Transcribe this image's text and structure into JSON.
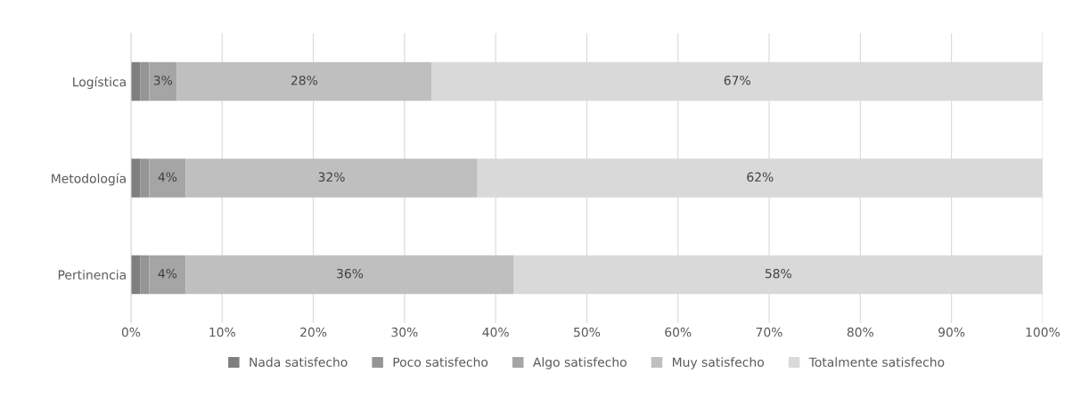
{
  "chart_data": {
    "type": "bar",
    "orientation": "horizontal",
    "stacked": true,
    "categories": [
      "Logística",
      "Metodología",
      "Pertinencia"
    ],
    "series": [
      {
        "name": "Nada satisfecho",
        "color": "#7f7f7f",
        "values": [
          1,
          1,
          1
        ]
      },
      {
        "name": "Poco satisfecho",
        "color": "#959595",
        "values": [
          1,
          1,
          1
        ]
      },
      {
        "name": "Algo satisfecho",
        "color": "#a5a5a5",
        "values": [
          3,
          4,
          4
        ],
        "value_labels": [
          "3%",
          "4%",
          "4%"
        ]
      },
      {
        "name": "Muy satisfecho",
        "color": "#bfbfbf",
        "values": [
          28,
          32,
          36
        ],
        "value_labels": [
          "28%",
          "32%",
          "36%"
        ]
      },
      {
        "name": "Totalmente satisfecho",
        "color": "#d9d9d9",
        "values": [
          67,
          62,
          58
        ],
        "value_labels": [
          "67%",
          "62%",
          "58%"
        ]
      }
    ],
    "xlim": [
      0,
      100
    ],
    "xticks": [
      {
        "value": 0,
        "label": "0%"
      },
      {
        "value": 10,
        "label": "10%"
      },
      {
        "value": 20,
        "label": "20%"
      },
      {
        "value": 30,
        "label": "30%"
      },
      {
        "value": 40,
        "label": "40%"
      },
      {
        "value": 50,
        "label": "50%"
      },
      {
        "value": 60,
        "label": "60%"
      },
      {
        "value": 70,
        "label": "70%"
      },
      {
        "value": 80,
        "label": "80%"
      },
      {
        "value": 90,
        "label": "90%"
      },
      {
        "value": 100,
        "label": "100%"
      }
    ],
    "grid": "x",
    "legend": "bottom"
  }
}
